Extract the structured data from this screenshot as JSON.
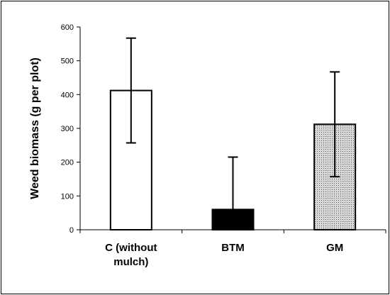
{
  "chart_data": {
    "type": "bar",
    "title": "",
    "xlabel": "",
    "ylabel": "Weed biomass (g per plot)",
    "ylim": [
      0,
      600
    ],
    "yticks": [
      0,
      100,
      200,
      300,
      400,
      500,
      600
    ],
    "categories": [
      [
        "C (without",
        "mulch)"
      ],
      [
        "BTM"
      ],
      [
        "GM"
      ]
    ],
    "values": [
      412,
      60,
      312
    ],
    "error": [
      155,
      155,
      155
    ],
    "bar_fills": [
      "white",
      "black",
      "dotted"
    ],
    "grid": false,
    "legend": "none"
  }
}
